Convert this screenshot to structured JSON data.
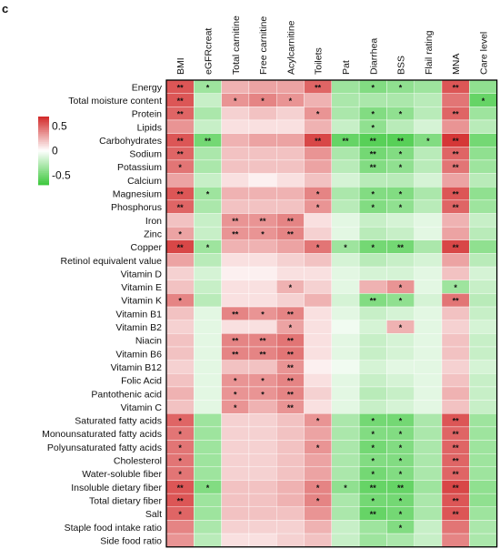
{
  "chart_data": {
    "type": "heatmap",
    "panel_label": "c",
    "colorbar": {
      "ticks": [
        0.5,
        0,
        -0.5
      ],
      "tick_labels": [
        "0.5",
        "0",
        "-0.5"
      ],
      "range": [
        -0.7,
        0.7
      ],
      "colors": {
        "negative": "#3cc83c",
        "zero": "#ffffff",
        "positive": "#d22828"
      }
    },
    "columns": [
      "BMI",
      "eGFRcreat",
      "Total carnitine",
      "Free carnitine",
      "Acylcarnitine",
      "Toilets",
      "Pat",
      "Diarrhea",
      "BSS",
      "Flail rating",
      "MNA",
      "Care level"
    ],
    "rows": [
      "Energy",
      "Total moisture content",
      "Protein",
      "Lipids",
      "Carbohydrates",
      "Sodium",
      "Potassium",
      "Calcium",
      "Magnesium",
      "Phosphorus",
      "Iron",
      "Zinc",
      "Copper",
      "Retinol equivalent value",
      "Vitamin D",
      "Vitamin E",
      "Vitamin K",
      "Vitamin B1",
      "Vitamin B2",
      "Niacin",
      "Vitamin B6",
      "Vitamin B12",
      "Folic Acid",
      "Pantothenic acid",
      "Vitamin C",
      "Saturated fatty acids",
      "Monounsaturated fatty acids",
      "Polyunsaturated fatty acids",
      "Cholesterol",
      "Water-soluble fiber",
      "Insoluble dietary fiber",
      "Total dietary fiber",
      "Salt",
      "Staple food intake ratio",
      "Side food ratio"
    ],
    "values": [
      [
        0.55,
        -0.35,
        0.25,
        0.3,
        0.3,
        0.5,
        -0.35,
        -0.45,
        -0.4,
        -0.35,
        0.55,
        -0.4
      ],
      [
        0.55,
        -0.2,
        0.35,
        0.4,
        0.35,
        0.25,
        -0.3,
        -0.3,
        -0.3,
        -0.25,
        0.45,
        -0.55
      ],
      [
        0.5,
        -0.3,
        0.15,
        0.2,
        0.15,
        0.35,
        -0.3,
        -0.45,
        -0.4,
        -0.25,
        0.5,
        -0.35
      ],
      [
        0.35,
        -0.2,
        0.1,
        0.1,
        0.1,
        0.25,
        -0.2,
        -0.4,
        -0.25,
        -0.15,
        0.35,
        -0.25
      ],
      [
        0.55,
        -0.5,
        0.25,
        0.3,
        0.3,
        0.6,
        -0.55,
        -0.6,
        -0.6,
        -0.45,
        0.65,
        -0.5
      ],
      [
        0.5,
        -0.3,
        0.2,
        0.2,
        0.2,
        0.35,
        -0.3,
        -0.5,
        -0.45,
        -0.25,
        0.5,
        -0.4
      ],
      [
        0.45,
        -0.3,
        0.2,
        0.2,
        0.2,
        0.3,
        -0.25,
        -0.45,
        -0.4,
        -0.25,
        0.45,
        -0.35
      ],
      [
        0.3,
        -0.2,
        0.1,
        0.05,
        0.1,
        0.2,
        -0.15,
        -0.25,
        -0.25,
        -0.15,
        0.3,
        -0.25
      ],
      [
        0.55,
        -0.35,
        0.25,
        0.25,
        0.25,
        0.4,
        -0.3,
        -0.45,
        -0.45,
        -0.3,
        0.55,
        -0.4
      ],
      [
        0.5,
        -0.3,
        0.2,
        0.2,
        0.2,
        0.35,
        -0.25,
        -0.45,
        -0.4,
        -0.25,
        0.5,
        -0.35
      ],
      [
        0.2,
        -0.2,
        0.35,
        0.35,
        0.4,
        0.1,
        -0.1,
        -0.2,
        -0.15,
        -0.1,
        0.25,
        -0.2
      ],
      [
        0.3,
        -0.2,
        0.35,
        0.35,
        0.4,
        0.15,
        -0.1,
        -0.25,
        -0.2,
        -0.1,
        0.3,
        -0.25
      ],
      [
        0.6,
        -0.35,
        0.25,
        0.25,
        0.3,
        0.45,
        -0.35,
        -0.5,
        -0.5,
        -0.3,
        0.6,
        -0.4
      ],
      [
        0.3,
        -0.25,
        0.1,
        0.1,
        0.15,
        0.2,
        -0.15,
        -0.25,
        -0.2,
        -0.15,
        0.3,
        -0.25
      ],
      [
        0.15,
        -0.15,
        0.05,
        0.05,
        0.1,
        0.1,
        -0.1,
        -0.15,
        -0.15,
        -0.1,
        0.2,
        -0.15
      ],
      [
        0.2,
        -0.2,
        0.1,
        0.1,
        0.25,
        0.15,
        -0.1,
        0.25,
        0.35,
        -0.1,
        -0.35,
        -0.2
      ],
      [
        0.4,
        -0.25,
        0.1,
        0.1,
        0.15,
        0.25,
        -0.15,
        -0.45,
        -0.4,
        -0.15,
        0.45,
        -0.25
      ],
      [
        0.2,
        -0.1,
        0.4,
        0.35,
        0.4,
        0.1,
        -0.1,
        -0.2,
        -0.15,
        -0.1,
        0.2,
        -0.2
      ],
      [
        0.15,
        -0.1,
        0.1,
        0.1,
        0.3,
        0.1,
        -0.05,
        -0.15,
        0.25,
        -0.1,
        0.15,
        -0.15
      ],
      [
        0.2,
        -0.1,
        0.4,
        0.4,
        0.45,
        0.1,
        -0.1,
        -0.2,
        -0.15,
        -0.1,
        0.2,
        -0.2
      ],
      [
        0.2,
        -0.1,
        0.4,
        0.4,
        0.45,
        0.1,
        -0.1,
        -0.2,
        -0.15,
        -0.1,
        0.2,
        -0.2
      ],
      [
        0.15,
        -0.1,
        0.2,
        0.2,
        0.35,
        0.05,
        -0.05,
        -0.15,
        -0.1,
        -0.1,
        0.15,
        -0.15
      ],
      [
        0.2,
        -0.1,
        0.35,
        0.35,
        0.4,
        0.1,
        -0.1,
        -0.2,
        -0.15,
        -0.1,
        0.2,
        -0.2
      ],
      [
        0.25,
        -0.1,
        0.35,
        0.35,
        0.4,
        0.15,
        -0.1,
        -0.25,
        -0.2,
        -0.1,
        0.25,
        -0.2
      ],
      [
        0.2,
        -0.1,
        0.35,
        0.25,
        0.35,
        0.1,
        -0.1,
        -0.2,
        -0.15,
        -0.1,
        0.2,
        -0.2
      ],
      [
        0.5,
        -0.35,
        0.15,
        0.15,
        0.2,
        0.35,
        -0.3,
        -0.5,
        -0.5,
        -0.3,
        0.55,
        -0.35
      ],
      [
        0.45,
        -0.35,
        0.15,
        0.15,
        0.2,
        0.3,
        -0.3,
        -0.45,
        -0.45,
        -0.3,
        0.5,
        -0.35
      ],
      [
        0.45,
        -0.35,
        0.15,
        0.15,
        0.2,
        0.35,
        -0.3,
        -0.5,
        -0.45,
        -0.3,
        0.5,
        -0.35
      ],
      [
        0.45,
        -0.35,
        0.15,
        0.15,
        0.2,
        0.3,
        -0.3,
        -0.45,
        -0.45,
        -0.3,
        0.5,
        -0.35
      ],
      [
        0.45,
        -0.35,
        0.15,
        0.15,
        0.2,
        0.3,
        -0.3,
        -0.5,
        -0.45,
        -0.3,
        0.5,
        -0.35
      ],
      [
        0.55,
        -0.45,
        0.2,
        0.2,
        0.25,
        0.4,
        -0.4,
        -0.55,
        -0.55,
        -0.35,
        0.6,
        -0.4
      ],
      [
        0.55,
        -0.35,
        0.2,
        0.2,
        0.25,
        0.4,
        -0.3,
        -0.5,
        -0.5,
        -0.3,
        0.55,
        -0.4
      ],
      [
        0.5,
        -0.35,
        0.2,
        0.2,
        0.2,
        0.35,
        -0.3,
        -0.55,
        -0.5,
        -0.3,
        0.55,
        -0.35
      ],
      [
        0.4,
        -0.3,
        0.15,
        0.15,
        0.15,
        0.25,
        -0.2,
        -0.35,
        -0.45,
        -0.2,
        0.45,
        -0.3
      ],
      [
        0.35,
        -0.25,
        0.1,
        0.1,
        0.15,
        0.2,
        -0.2,
        -0.35,
        -0.3,
        -0.2,
        0.4,
        -0.3
      ]
    ],
    "significance": [
      [
        "**",
        "*",
        "",
        "",
        "",
        "**",
        "",
        "*",
        "*",
        "",
        "**",
        ""
      ],
      [
        "**",
        "",
        "*",
        "*",
        "*",
        "",
        "",
        "",
        "",
        "",
        "",
        "*"
      ],
      [
        "**",
        "",
        "",
        "",
        "",
        "*",
        "",
        "*",
        "*",
        "",
        "**",
        ""
      ],
      [
        "",
        "",
        "",
        "",
        "",
        "",
        "",
        "*",
        "",
        "",
        "",
        ""
      ],
      [
        "**",
        "**",
        "",
        "",
        "",
        "**",
        "**",
        "**",
        "**",
        "*",
        "**",
        ""
      ],
      [
        "**",
        "",
        "",
        "",
        "",
        "",
        "",
        "**",
        "*",
        "",
        "**",
        ""
      ],
      [
        "*",
        "",
        "",
        "",
        "",
        "",
        "",
        "**",
        "*",
        "",
        "**",
        ""
      ],
      [
        "",
        "",
        "",
        "",
        "",
        "",
        "",
        "",
        "",
        "",
        "",
        ""
      ],
      [
        "**",
        "*",
        "",
        "",
        "",
        "*",
        "",
        "*",
        "*",
        "",
        "**",
        ""
      ],
      [
        "**",
        "",
        "",
        "",
        "",
        "*",
        "",
        "*",
        "*",
        "",
        "**",
        ""
      ],
      [
        "",
        "",
        "**",
        "**",
        "**",
        "",
        "",
        "",
        "",
        "",
        "",
        ""
      ],
      [
        "*",
        "",
        "**",
        "*",
        "**",
        "",
        "",
        "",
        "",
        "",
        "",
        ""
      ],
      [
        "**",
        "*",
        "",
        "",
        "",
        "*",
        "*",
        "*",
        "**",
        "",
        "**",
        ""
      ],
      [
        "",
        "",
        "",
        "",
        "",
        "",
        "",
        "",
        "",
        "",
        "",
        ""
      ],
      [
        "",
        "",
        "",
        "",
        "",
        "",
        "",
        "",
        "",
        "",
        "",
        ""
      ],
      [
        "",
        "",
        "",
        "",
        "*",
        "",
        "",
        "",
        "*",
        "",
        "*",
        ""
      ],
      [
        "*",
        "",
        "",
        "",
        "",
        "",
        "",
        "**",
        "*",
        "",
        "**",
        ""
      ],
      [
        "",
        "",
        "**",
        "*",
        "**",
        "",
        "",
        "",
        "",
        "",
        "",
        ""
      ],
      [
        "",
        "",
        "",
        "",
        "*",
        "",
        "",
        "",
        "*",
        "",
        "",
        ""
      ],
      [
        "",
        "",
        "**",
        "**",
        "**",
        "",
        "",
        "",
        "",
        "",
        "",
        ""
      ],
      [
        "",
        "",
        "**",
        "**",
        "**",
        "",
        "",
        "",
        "",
        "",
        "",
        ""
      ],
      [
        "",
        "",
        "",
        "",
        "**",
        "",
        "",
        "",
        "",
        "",
        "",
        ""
      ],
      [
        "",
        "",
        "*",
        "*",
        "**",
        "",
        "",
        "",
        "",
        "",
        "",
        ""
      ],
      [
        "",
        "",
        "*",
        "*",
        "**",
        "",
        "",
        "",
        "",
        "",
        "",
        ""
      ],
      [
        "",
        "",
        "*",
        "",
        "**",
        "",
        "",
        "",
        "",
        "",
        "",
        ""
      ],
      [
        "*",
        "",
        "",
        "",
        "",
        "*",
        "",
        "*",
        "*",
        "",
        "**",
        ""
      ],
      [
        "*",
        "",
        "",
        "",
        "",
        "",
        "",
        "*",
        "*",
        "",
        "**",
        ""
      ],
      [
        "*",
        "",
        "",
        "",
        "",
        "*",
        "",
        "*",
        "*",
        "",
        "**",
        ""
      ],
      [
        "*",
        "",
        "",
        "",
        "",
        "",
        "",
        "*",
        "*",
        "",
        "**",
        ""
      ],
      [
        "*",
        "",
        "",
        "",
        "",
        "",
        "",
        "*",
        "*",
        "",
        "**",
        ""
      ],
      [
        "**",
        "*",
        "",
        "",
        "",
        "*",
        "*",
        "**",
        "**",
        "",
        "**",
        ""
      ],
      [
        "**",
        "",
        "",
        "",
        "",
        "*",
        "",
        "*",
        "*",
        "",
        "**",
        ""
      ],
      [
        "*",
        "",
        "",
        "",
        "",
        "",
        "",
        "**",
        "*",
        "",
        "**",
        ""
      ],
      [
        "",
        "",
        "",
        "",
        "",
        "",
        "",
        "",
        "*",
        "",
        "",
        ""
      ],
      [
        "",
        "",
        "",
        "",
        "",
        "",
        "",
        "",
        "",
        "",
        "",
        ""
      ]
    ]
  }
}
